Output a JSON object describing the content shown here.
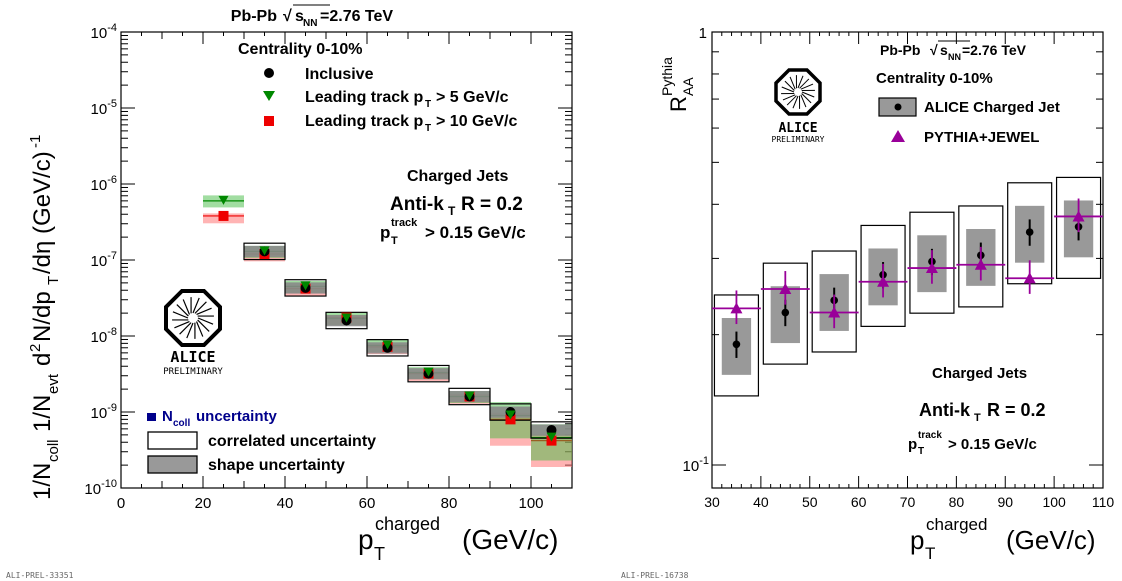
{
  "left_panel": {
    "collision": "Pb-Pb",
    "energy_value": "=2.76 TeV",
    "centrality": "Centrality 0-10%",
    "ylabel": "1/N_coll 1/N_evt d²N/dp_T/dη (GeV/c)⁻¹",
    "jets_title": "Charged Jets",
    "algo": "Anti-k_T R = 0.2",
    "track_cut": "> 0.15 GeV/c",
    "ncoll_label": "uncertainty",
    "corr_label": "correlated uncertainty",
    "shape_label": "shape uncertainty",
    "xlabel_unit": "(GeV/c)",
    "preliminary_id": "ALI-PREL-33351",
    "logo_text": "ALICE",
    "logo_sub": "PRELIMINARY"
  },
  "right_panel": {
    "collision": "Pb-Pb",
    "energy_value": "=2.76 TeV",
    "centrality": "Centrality 0-10%",
    "legend_data": "ALICE Charged Jet",
    "legend_model": "PYTHIA+JEWEL",
    "jets_title": "Charged Jets",
    "algo": "Anti-k_T R = 0.2",
    "track_cut": "> 0.15 GeV/c",
    "xlabel_unit": "(GeV/c)",
    "preliminary_id": "ALI-PREL-16738",
    "logo_text": "ALICE",
    "logo_sub": "PRELIMINARY"
  },
  "chart_data": [
    {
      "type": "scatter",
      "title": "Pb-Pb √sNN=2.76 TeV",
      "xlabel": "p_T^charged (GeV/c)",
      "ylabel": "1/N_coll 1/N_evt d²N/dp_T/dη (GeV/c)⁻¹",
      "xlim": [
        0,
        110
      ],
      "ylim": [
        1e-10,
        0.0001
      ],
      "yscale": "log",
      "x_ticks": [
        0,
        20,
        40,
        60,
        80,
        100
      ],
      "y_ticks": [
        "10^-10",
        "10^-9",
        "10^-8",
        "10^-7",
        "10^-6",
        "10^-5",
        "10^-4"
      ],
      "series": [
        {
          "name": "Inclusive",
          "color": "#000000",
          "marker": "circle",
          "x": [
            35,
            45,
            55,
            65,
            75,
            85,
            95,
            105
          ],
          "y": [
            1.3e-07,
            4.3e-08,
            1.6e-08,
            7e-09,
            3.2e-09,
            1.6e-09,
            1e-09,
            5.8e-10
          ]
        },
        {
          "name": "Leading track p_T > 5 GeV/c",
          "color": "#008800",
          "marker": "triangle-down",
          "x": [
            25,
            35,
            45,
            55,
            65,
            75,
            85,
            95,
            105
          ],
          "y": [
            6e-07,
            1.3e-07,
            4.5e-08,
            1.7e-08,
            7.5e-09,
            3.3e-09,
            1.6e-09,
            9e-10,
            4.6e-10
          ]
        },
        {
          "name": "Leading track p_T > 10 GeV/c",
          "color": "#ee0000",
          "marker": "square",
          "x": [
            25,
            35,
            45,
            55,
            65,
            75,
            85,
            95,
            105
          ],
          "y": [
            3.8e-07,
            1.2e-07,
            4.2e-08,
            1.75e-08,
            7.2e-09,
            3.2e-09,
            1.6e-09,
            8e-10,
            4.2e-10
          ]
        }
      ]
    },
    {
      "type": "scatter",
      "title": "Pb-Pb √sNN=2.76 TeV",
      "xlabel": "p_T^charged (GeV/c)",
      "ylabel": "R_AA^Pythia",
      "xlim": [
        30,
        110
      ],
      "ylim": [
        0.1,
        1
      ],
      "yscale": "log",
      "x_ticks": [
        30,
        40,
        50,
        60,
        70,
        80,
        90,
        100,
        110
      ],
      "y_ticks": [
        "10^-1",
        "1"
      ],
      "series": [
        {
          "name": "ALICE Charged Jet",
          "color": "#000000",
          "marker": "circle",
          "x": [
            35,
            45,
            55,
            65,
            75,
            85,
            95,
            105
          ],
          "y": [
            0.19,
            0.225,
            0.24,
            0.275,
            0.295,
            0.305,
            0.345,
            0.355
          ]
        },
        {
          "name": "PYTHIA+JEWEL",
          "color": "#990099",
          "marker": "triangle-up",
          "x": [
            35,
            45,
            55,
            65,
            75,
            85,
            95,
            105
          ],
          "y": [
            0.23,
            0.255,
            0.225,
            0.265,
            0.285,
            0.29,
            0.27,
            0.375
          ]
        }
      ]
    }
  ]
}
